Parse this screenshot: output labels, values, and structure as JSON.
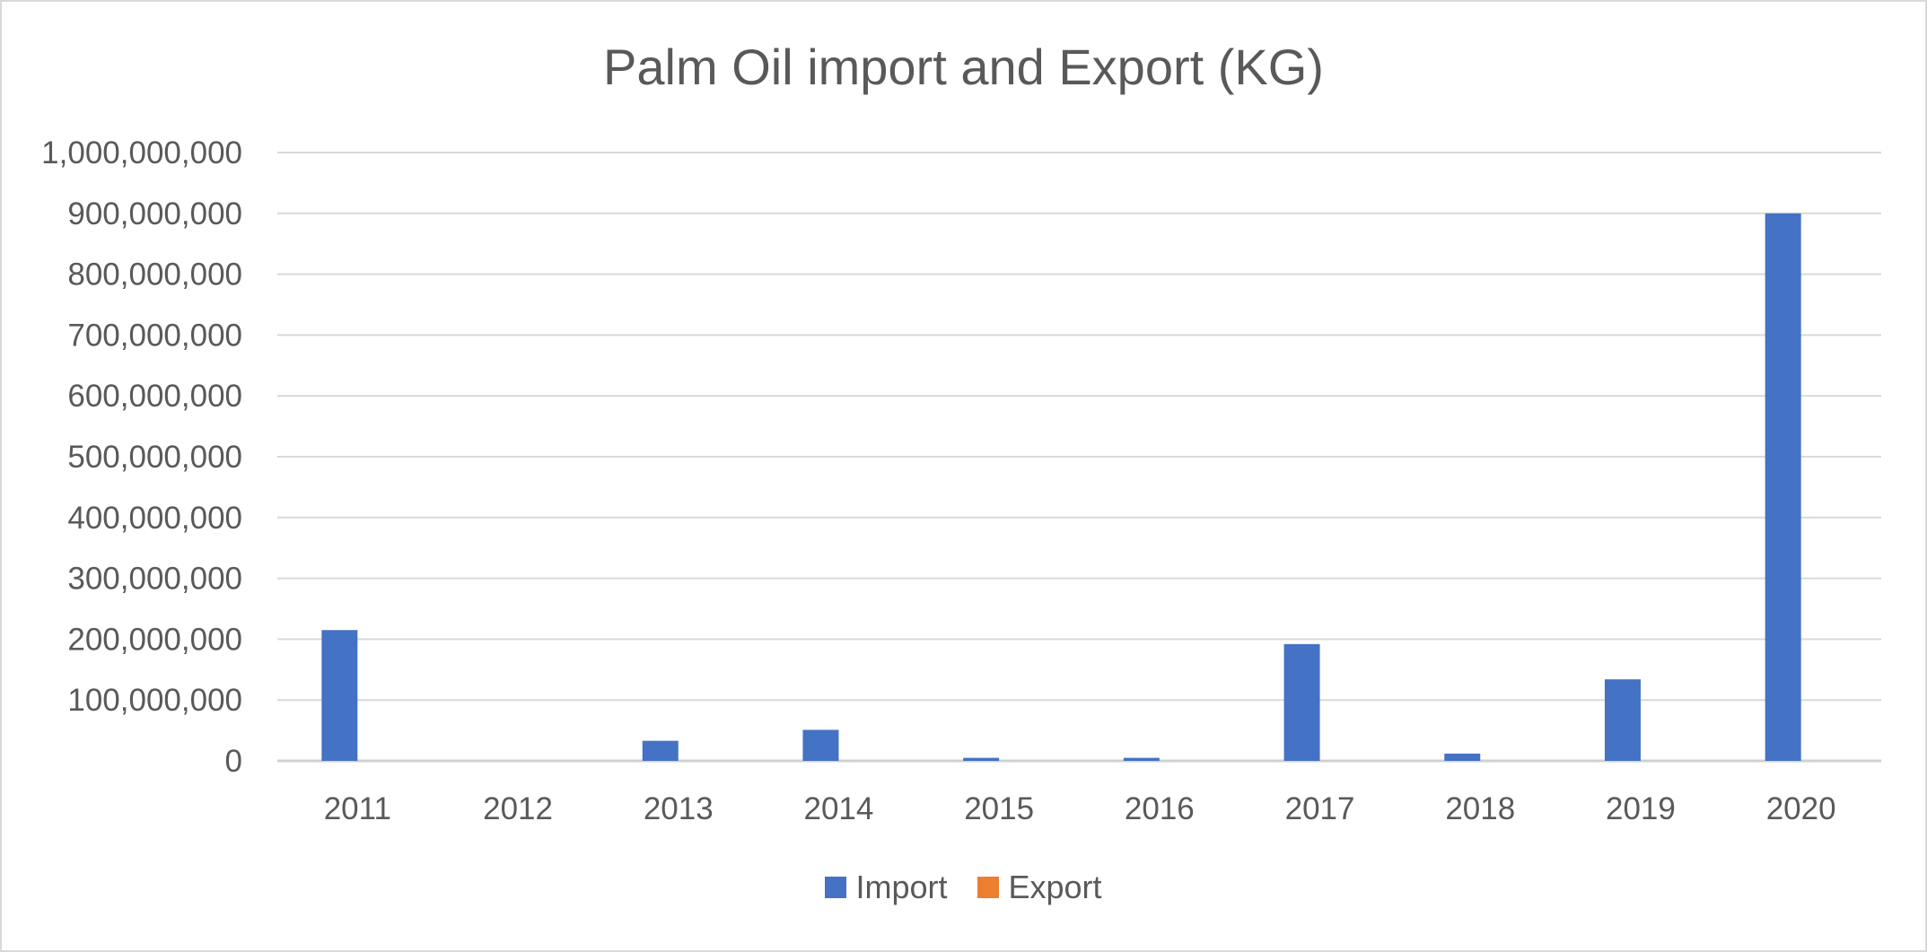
{
  "chart_data": {
    "type": "bar",
    "title": "Palm Oil import and Export (KG)",
    "xlabel": "",
    "ylabel": "",
    "categories": [
      "2011",
      "2012",
      "2013",
      "2014",
      "2015",
      "2016",
      "2017",
      "2018",
      "2019",
      "2020"
    ],
    "series": [
      {
        "name": "Import",
        "color": "#4472c4",
        "values": [
          215000000,
          0,
          33000000,
          51000000,
          5000000,
          5000000,
          192000000,
          12000000,
          134000000,
          900000000
        ]
      },
      {
        "name": "Export",
        "color": "#ed7d31",
        "values": [
          0,
          0,
          0,
          0,
          0,
          0,
          0,
          0,
          0,
          0
        ]
      }
    ],
    "ylim": [
      0,
      1000000000
    ],
    "yticks": [
      0,
      100000000,
      200000000,
      300000000,
      400000000,
      500000000,
      600000000,
      700000000,
      800000000,
      900000000,
      1000000000
    ],
    "ytick_labels": [
      "0",
      "100,000,000",
      "200,000,000",
      "300,000,000",
      "400,000,000",
      "500,000,000",
      "600,000,000",
      "700,000,000",
      "800,000,000",
      "900,000,000",
      "1,000,000,000"
    ],
    "grid": true,
    "legend_position": "bottom"
  }
}
